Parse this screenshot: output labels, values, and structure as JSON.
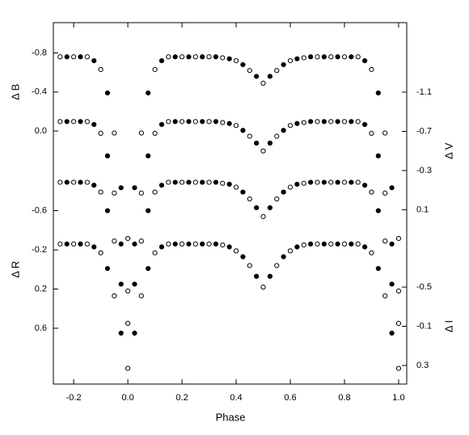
{
  "chart_data": {
    "type": "scatter",
    "x_label": "Phase",
    "xlim": [
      -0.275,
      1.03
    ],
    "xticks": [
      {
        "value": -0.2,
        "label": "-0.2"
      },
      {
        "value": 0,
        "label": "0.0"
      },
      {
        "value": 0.2,
        "label": "0.2"
      },
      {
        "value": 0.4,
        "label": "0.4"
      },
      {
        "value": 0.6,
        "label": "0.6"
      },
      {
        "value": 0.8,
        "label": "0.8"
      },
      {
        "value": 1.0,
        "label": "1.0"
      }
    ],
    "x": [
      -0.25,
      -0.225,
      -0.2,
      -0.175,
      -0.15,
      -0.125,
      -0.1,
      -0.075,
      -0.05,
      -0.025,
      0,
      0.025,
      0.05,
      0.075,
      0.1,
      0.125,
      0.15,
      0.175,
      0.2,
      0.225,
      0.25,
      0.275,
      0.3,
      0.325,
      0.35,
      0.375,
      0.4,
      0.425,
      0.45,
      0.475,
      0.5,
      0.525,
      0.55,
      0.575,
      0.6,
      0.625,
      0.65,
      0.675,
      0.7,
      0.725,
      0.75,
      0.775,
      0.8,
      0.825,
      0.85,
      0.875,
      0.9,
      0.925,
      0.95,
      0.975,
      1.0
    ],
    "series": [
      {
        "name": "Δ B",
        "side": "left",
        "color": "#000000",
        "ylim": [
          2.59,
          -1.11
        ],
        "yticks": [
          -0.8,
          -0.4,
          {
            "value": 0,
            "label": "0.0"
          }
        ],
        "values": [
          -0.76,
          -0.76,
          -0.76,
          -0.76,
          -0.76,
          -0.72,
          -0.63,
          -0.39,
          0.02,
          0.58,
          1.1,
          0.58,
          0.02,
          -0.39,
          -0.63,
          -0.72,
          -0.76,
          -0.76,
          -0.76,
          -0.76,
          -0.76,
          -0.76,
          -0.76,
          -0.76,
          -0.75,
          -0.74,
          -0.72,
          -0.68,
          -0.62,
          -0.56,
          -0.49,
          -0.56,
          -0.62,
          -0.68,
          -0.72,
          -0.74,
          -0.75,
          -0.76,
          -0.76,
          -0.76,
          -0.76,
          -0.76,
          -0.76,
          -0.76,
          -0.76,
          -0.72,
          -0.63,
          -0.39,
          0.02,
          0.58,
          1.1
        ]
      },
      {
        "name": "Δ V",
        "side": "right",
        "color": "#000000",
        "ylim": [
          1.88,
          -1.81
        ],
        "yticks": [
          -1.1,
          -0.7,
          -0.3,
          0.1
        ],
        "values": [
          -0.8,
          -0.8,
          -0.8,
          -0.8,
          -0.8,
          -0.77,
          -0.68,
          -0.45,
          -0.07,
          0.45,
          0.93,
          0.45,
          -0.07,
          -0.45,
          -0.68,
          -0.77,
          -0.8,
          -0.8,
          -0.8,
          -0.8,
          -0.8,
          -0.8,
          -0.8,
          -0.8,
          -0.79,
          -0.78,
          -0.76,
          -0.71,
          -0.65,
          -0.58,
          -0.5,
          -0.58,
          -0.65,
          -0.71,
          -0.76,
          -0.78,
          -0.79,
          -0.8,
          -0.8,
          -0.8,
          -0.8,
          -0.8,
          -0.8,
          -0.8,
          -0.8,
          -0.77,
          -0.68,
          -0.45,
          -0.07,
          0.45,
          0.93
        ]
      },
      {
        "name": "Δ R",
        "side": "left",
        "color": "#000000",
        "ylim": [
          1.17,
          -2.52
        ],
        "yticks": [
          -0.6,
          -0.2,
          0.2,
          0.6
        ],
        "values": [
          -0.89,
          -0.89,
          -0.89,
          -0.89,
          -0.89,
          -0.86,
          -0.79,
          -0.6,
          -0.29,
          0.15,
          0.55,
          0.15,
          -0.29,
          -0.6,
          -0.79,
          -0.86,
          -0.89,
          -0.89,
          -0.89,
          -0.89,
          -0.89,
          -0.89,
          -0.89,
          -0.89,
          -0.88,
          -0.87,
          -0.84,
          -0.79,
          -0.72,
          -0.63,
          -0.54,
          -0.63,
          -0.72,
          -0.79,
          -0.84,
          -0.87,
          -0.88,
          -0.89,
          -0.89,
          -0.89,
          -0.89,
          -0.89,
          -0.89,
          -0.89,
          -0.89,
          -0.86,
          -0.79,
          -0.6,
          -0.29,
          0.15,
          0.55
        ]
      },
      {
        "name": "Δ I",
        "side": "right",
        "color": "#000000",
        "ylim": [
          0.49,
          -3.2
        ],
        "yticks": [
          -0.5,
          -0.1,
          0.3
        ],
        "values": [
          -0.94,
          -0.94,
          -0.94,
          -0.94,
          -0.94,
          -0.91,
          -0.85,
          -0.69,
          -0.41,
          -0.03,
          0.33,
          -0.03,
          -0.41,
          -0.69,
          -0.85,
          -0.91,
          -0.94,
          -0.94,
          -0.94,
          -0.94,
          -0.94,
          -0.94,
          -0.94,
          -0.94,
          -0.93,
          -0.91,
          -0.87,
          -0.81,
          -0.72,
          -0.61,
          -0.5,
          -0.61,
          -0.72,
          -0.81,
          -0.87,
          -0.91,
          -0.93,
          -0.94,
          -0.94,
          -0.94,
          -0.94,
          -0.94,
          -0.94,
          -0.94,
          -0.94,
          -0.91,
          -0.85,
          -0.69,
          -0.41,
          -0.03,
          0.33
        ]
      }
    ]
  }
}
